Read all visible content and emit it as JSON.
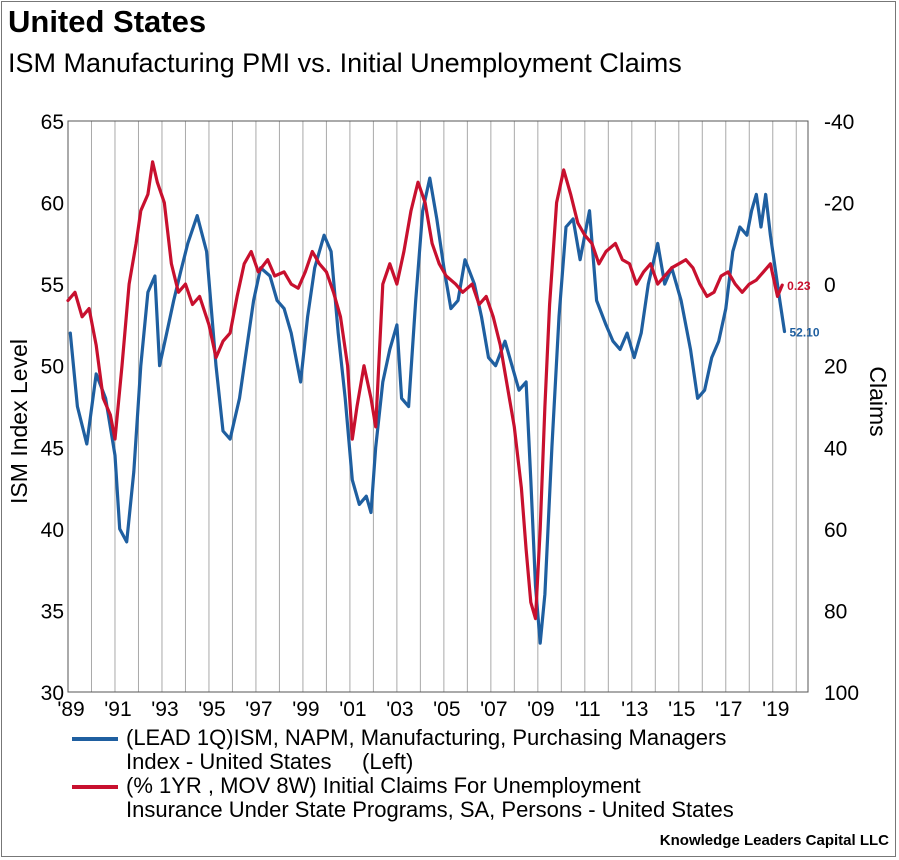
{
  "header": {
    "title": "United States",
    "subtitle": "ISM Manufacturing PMI vs. Initial Unemployment Claims"
  },
  "credit": "Knowledge Leaders Capital LLC",
  "colors": {
    "ism": "#1f5fa0",
    "claims": "#c8102e",
    "grid": "#a9a9a9"
  },
  "legend": {
    "ism_line1": "(LEAD 1Q)ISM, NAPM, Manufacturing, Purchasing Managers",
    "ism_line2": "Index - United States     (Left)",
    "claims_line1": "(% 1YR , MOV 8W) Initial Claims For Unemployment",
    "claims_line2": "Insurance Under State Programs, SA, Persons - United States"
  },
  "chart_data": {
    "type": "line",
    "title": "ISM Manufacturing PMI vs. Initial Unemployment Claims",
    "x_range": [
      1989.0,
      2020.5
    ],
    "x_ticks": [
      1989,
      1991,
      1993,
      1995,
      1997,
      1999,
      2001,
      2003,
      2005,
      2007,
      2009,
      2011,
      2013,
      2015,
      2017,
      2019
    ],
    "x_tick_labels": [
      "'89",
      "'91",
      "'93",
      "'95",
      "'97",
      "'99",
      "'01",
      "'03",
      "'05",
      "'07",
      "'09",
      "'11",
      "'13",
      "'15",
      "'17",
      "'19"
    ],
    "y_left": {
      "label": "ISM Index Level",
      "range": [
        30,
        65
      ],
      "ticks": [
        30,
        35,
        40,
        45,
        50,
        55,
        60,
        65
      ]
    },
    "y_right": {
      "label": "Claims",
      "range": [
        100,
        -40
      ],
      "inverted": true,
      "ticks": [
        100,
        80,
        60,
        40,
        20,
        0,
        -20,
        -40
      ]
    },
    "grid": {
      "vertical": true,
      "horizontal": false
    },
    "series": [
      {
        "name": "(LEAD 1Q)ISM, NAPM, Manufacturing, Purchasing Managers Index - United States (Left)",
        "axis": "left",
        "end_label": "52.10",
        "x": [
          1989.1,
          1989.4,
          1989.8,
          1990.2,
          1990.6,
          1991.0,
          1991.2,
          1991.5,
          1991.8,
          1992.1,
          1992.4,
          1992.7,
          1992.9,
          1993.2,
          1993.5,
          1993.8,
          1994.1,
          1994.5,
          1994.9,
          1995.3,
          1995.6,
          1995.9,
          1996.3,
          1996.6,
          1996.9,
          1997.2,
          1997.6,
          1997.9,
          1998.2,
          1998.5,
          1998.9,
          1999.2,
          1999.5,
          1999.9,
          2000.2,
          2000.5,
          2000.8,
          2001.1,
          2001.4,
          2001.7,
          2001.9,
          2002.1,
          2002.4,
          2002.7,
          2003.0,
          2003.2,
          2003.5,
          2003.8,
          2004.1,
          2004.4,
          2004.7,
          2005.0,
          2005.3,
          2005.6,
          2005.9,
          2006.3,
          2006.6,
          2006.9,
          2007.2,
          2007.6,
          2007.9,
          2008.2,
          2008.5,
          2008.7,
          2008.9,
          2009.1,
          2009.3,
          2009.6,
          2009.9,
          2010.2,
          2010.5,
          2010.8,
          2011.2,
          2011.5,
          2011.9,
          2012.2,
          2012.5,
          2012.8,
          2013.1,
          2013.4,
          2013.7,
          2014.1,
          2014.4,
          2014.7,
          2015.1,
          2015.5,
          2015.8,
          2016.1,
          2016.4,
          2016.7,
          2017.0,
          2017.3,
          2017.6,
          2017.9,
          2018.1,
          2018.3,
          2018.5,
          2018.7,
          2018.9,
          2019.1,
          2019.3,
          2019.5
        ],
        "values": [
          52.0,
          47.5,
          45.2,
          49.5,
          48.0,
          44.5,
          40.0,
          39.2,
          43.5,
          50.0,
          54.5,
          55.5,
          50.0,
          52.0,
          54.0,
          55.8,
          57.5,
          59.2,
          57.0,
          50.0,
          46.0,
          45.5,
          48.0,
          51.0,
          54.0,
          56.0,
          55.5,
          54.0,
          53.5,
          52.0,
          49.0,
          53.0,
          56.0,
          58.0,
          57.0,
          52.0,
          48.0,
          43.0,
          41.5,
          42.0,
          41.0,
          45.0,
          49.0,
          51.0,
          52.5,
          48.0,
          47.5,
          54.0,
          59.5,
          61.5,
          59.0,
          56.0,
          53.5,
          54.0,
          56.5,
          55.0,
          53.0,
          50.5,
          50.0,
          51.5,
          50.0,
          48.5,
          49.0,
          43.0,
          36.5,
          33.0,
          36.0,
          45.0,
          53.0,
          58.5,
          59.0,
          56.5,
          59.5,
          54.0,
          52.5,
          51.5,
          51.0,
          52.0,
          50.5,
          52.0,
          55.0,
          57.5,
          55.0,
          56.0,
          54.0,
          51.0,
          48.0,
          48.5,
          50.5,
          51.5,
          53.5,
          57.0,
          58.5,
          58.0,
          59.5,
          60.5,
          58.5,
          60.5,
          58.0,
          56.0,
          54.0,
          52.1
        ]
      },
      {
        "name": "(% 1YR , MOV 8W) Initial Claims For Unemployment Insurance Under State Programs, SA, Persons - United States",
        "axis": "right",
        "end_label": "0.23",
        "x": [
          1989.0,
          1989.3,
          1989.6,
          1989.9,
          1990.2,
          1990.5,
          1990.8,
          1991.0,
          1991.3,
          1991.6,
          1991.9,
          1992.1,
          1992.4,
          1992.6,
          1992.8,
          1993.1,
          1993.4,
          1993.7,
          1994.0,
          1994.3,
          1994.6,
          1995.0,
          1995.3,
          1995.6,
          1995.9,
          1996.2,
          1996.5,
          1996.8,
          1997.1,
          1997.5,
          1997.8,
          1998.2,
          1998.5,
          1998.8,
          1999.1,
          1999.4,
          1999.7,
          2000.0,
          2000.3,
          2000.6,
          2000.9,
          2001.1,
          2001.3,
          2001.6,
          2001.9,
          2002.1,
          2002.4,
          2002.7,
          2003.0,
          2003.3,
          2003.6,
          2003.9,
          2004.2,
          2004.5,
          2004.8,
          2005.1,
          2005.5,
          2005.8,
          2006.2,
          2006.5,
          2006.8,
          2007.1,
          2007.4,
          2007.7,
          2008.0,
          2008.3,
          2008.5,
          2008.7,
          2008.9,
          2009.1,
          2009.3,
          2009.5,
          2009.8,
          2010.1,
          2010.4,
          2010.7,
          2011.0,
          2011.3,
          2011.6,
          2011.9,
          2012.3,
          2012.6,
          2012.9,
          2013.2,
          2013.5,
          2013.8,
          2014.1,
          2014.4,
          2014.7,
          2015.0,
          2015.3,
          2015.6,
          2015.9,
          2016.2,
          2016.5,
          2016.8,
          2017.1,
          2017.4,
          2017.7,
          2018.0,
          2018.3,
          2018.6,
          2018.9,
          2019.2,
          2019.4
        ],
        "values": [
          4,
          2,
          8,
          6,
          15,
          28,
          32,
          38,
          20,
          0,
          -10,
          -18,
          -22,
          -30,
          -25,
          -20,
          -5,
          2,
          0,
          5,
          3,
          10,
          18,
          14,
          12,
          3,
          -5,
          -8,
          -3,
          -6,
          -2,
          -3,
          0,
          1,
          -3,
          -8,
          -5,
          -3,
          2,
          8,
          20,
          38,
          30,
          20,
          28,
          35,
          0,
          -5,
          0,
          -8,
          -18,
          -25,
          -20,
          -10,
          -5,
          -2,
          0,
          2,
          0,
          5,
          3,
          8,
          15,
          25,
          35,
          50,
          65,
          78,
          82,
          60,
          30,
          5,
          -20,
          -28,
          -22,
          -15,
          -12,
          -10,
          -5,
          -8,
          -10,
          -6,
          -5,
          0,
          -3,
          -5,
          0,
          -2,
          -4,
          -5,
          -6,
          -4,
          0,
          3,
          2,
          -2,
          -3,
          0,
          2,
          0,
          -1,
          -3,
          -5,
          3,
          0.23
        ]
      }
    ]
  }
}
